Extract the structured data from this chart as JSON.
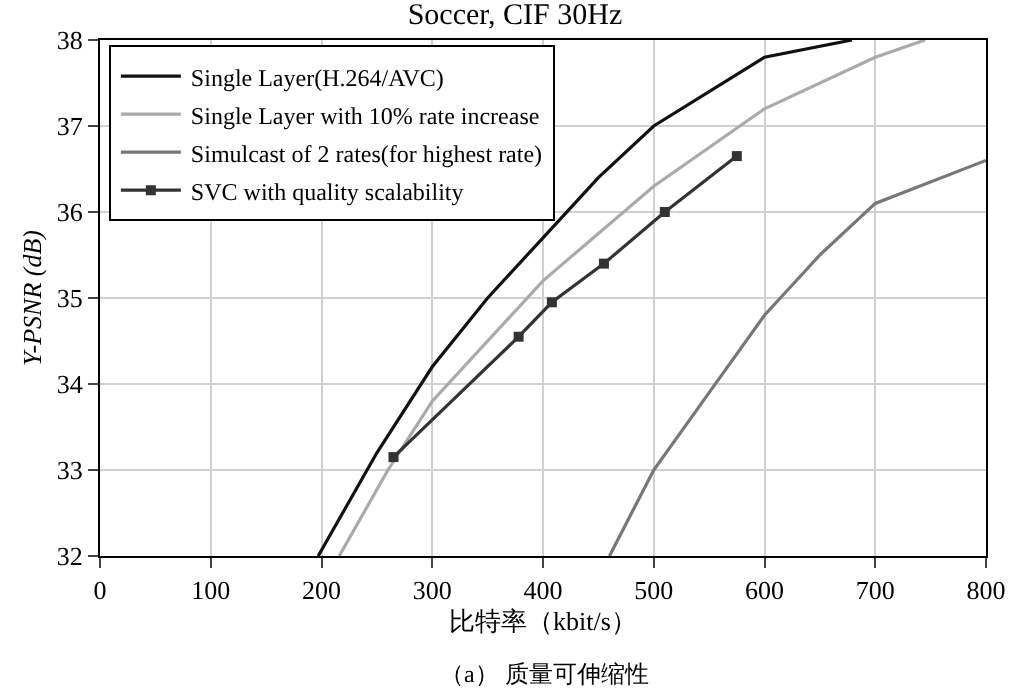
{
  "chart_data": {
    "type": "line",
    "title": "Soccer, CIF 30Hz",
    "xlabel": "比特率（kbit/s）",
    "ylabel": "Y-PSNR (dB)",
    "annotations": [
      "（a） 质量可伸缩性"
    ],
    "xlim": [
      0,
      800
    ],
    "xticks": [
      0,
      100,
      200,
      300,
      400,
      500,
      600,
      700,
      800
    ],
    "ylim": [
      32,
      38
    ],
    "yticks": [
      32,
      33,
      34,
      35,
      36,
      37,
      38
    ],
    "grid": true,
    "legend": "top left",
    "line_style": "solid",
    "series": [
      {
        "name": "Single Layer(H.264/AVC)",
        "color": "#111111",
        "marker": "none",
        "x": [
          197,
          250,
          300,
          350,
          400,
          450,
          500,
          600,
          679
        ],
        "values": [
          32,
          33.2,
          34.2,
          35,
          35.7,
          36.4,
          37,
          37.8,
          38
        ]
      },
      {
        "name": "Single Layer with 10% rate increase",
        "color": "#aaaaaa",
        "marker": "none",
        "x": [
          216,
          260,
          300,
          400,
          500,
          600,
          700,
          745
        ],
        "values": [
          32,
          33,
          33.8,
          35.2,
          36.3,
          37.2,
          37.8,
          38
        ]
      },
      {
        "name": "Simulcast of 2 rates(for highest rate)",
        "color": "#777777",
        "marker": "none",
        "x": [
          460,
          500,
          550,
          600,
          650,
          700,
          800
        ],
        "values": [
          32,
          33,
          33.9,
          34.8,
          35.5,
          36.1,
          36.6
        ]
      },
      {
        "name": "SVC with quality scalability",
        "color": "#333333",
        "marker": "square",
        "x": [
          265,
          378,
          408,
          455,
          510,
          575
        ],
        "values": [
          33.15,
          34.55,
          34.95,
          35.4,
          36.0,
          36.65
        ]
      }
    ]
  }
}
